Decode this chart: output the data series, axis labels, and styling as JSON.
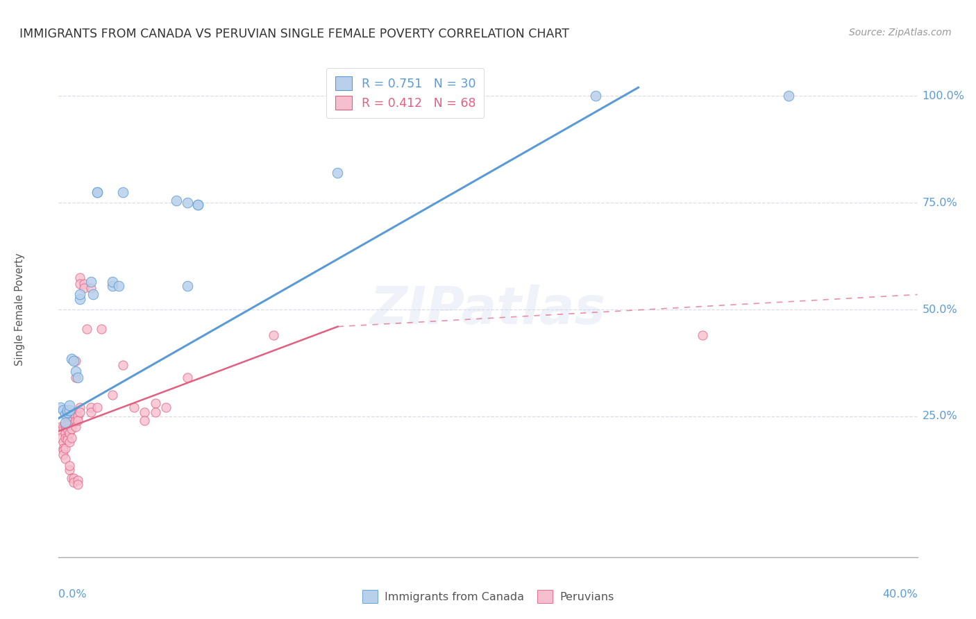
{
  "title": "IMMIGRANTS FROM CANADA VS PERUVIAN SINGLE FEMALE POVERTY CORRELATION CHART",
  "source": "Source: ZipAtlas.com",
  "ylabel": "Single Female Poverty",
  "right_yticks": [
    0.25,
    0.5,
    0.75,
    1.0
  ],
  "right_yticklabels": [
    "25.0%",
    "50.0%",
    "75.0%",
    "100.0%"
  ],
  "legend_entries": [
    {
      "label": "R = 0.751   N = 30"
    },
    {
      "label": "R = 0.412   N = 68"
    }
  ],
  "legend_bottom_labels": [
    "Immigrants from Canada",
    "Peruvians"
  ],
  "blue_scatter": [
    [
      0.001,
      0.27
    ],
    [
      0.002,
      0.265
    ],
    [
      0.003,
      0.255
    ],
    [
      0.003,
      0.235
    ],
    [
      0.004,
      0.26
    ],
    [
      0.004,
      0.265
    ],
    [
      0.005,
      0.265
    ],
    [
      0.005,
      0.275
    ],
    [
      0.006,
      0.385
    ],
    [
      0.007,
      0.38
    ],
    [
      0.008,
      0.355
    ],
    [
      0.009,
      0.34
    ],
    [
      0.01,
      0.525
    ],
    [
      0.01,
      0.535
    ],
    [
      0.015,
      0.565
    ],
    [
      0.016,
      0.535
    ],
    [
      0.018,
      0.775
    ],
    [
      0.018,
      0.775
    ],
    [
      0.025,
      0.555
    ],
    [
      0.025,
      0.565
    ],
    [
      0.028,
      0.555
    ],
    [
      0.03,
      0.775
    ],
    [
      0.055,
      0.755
    ],
    [
      0.06,
      0.555
    ],
    [
      0.065,
      0.745
    ],
    [
      0.13,
      0.82
    ],
    [
      0.25,
      1.0
    ],
    [
      0.34,
      1.0
    ],
    [
      0.06,
      0.75
    ],
    [
      0.065,
      0.745
    ]
  ],
  "pink_scatter": [
    [
      0.001,
      0.225
    ],
    [
      0.001,
      0.215
    ],
    [
      0.001,
      0.2
    ],
    [
      0.002,
      0.225
    ],
    [
      0.002,
      0.19
    ],
    [
      0.002,
      0.175
    ],
    [
      0.002,
      0.17
    ],
    [
      0.002,
      0.16
    ],
    [
      0.003,
      0.225
    ],
    [
      0.003,
      0.23
    ],
    [
      0.003,
      0.21
    ],
    [
      0.003,
      0.2
    ],
    [
      0.003,
      0.175
    ],
    [
      0.003,
      0.15
    ],
    [
      0.004,
      0.245
    ],
    [
      0.004,
      0.25
    ],
    [
      0.004,
      0.23
    ],
    [
      0.004,
      0.22
    ],
    [
      0.004,
      0.2
    ],
    [
      0.004,
      0.195
    ],
    [
      0.005,
      0.26
    ],
    [
      0.005,
      0.245
    ],
    [
      0.005,
      0.23
    ],
    [
      0.005,
      0.21
    ],
    [
      0.005,
      0.19
    ],
    [
      0.005,
      0.125
    ],
    [
      0.005,
      0.135
    ],
    [
      0.006,
      0.25
    ],
    [
      0.006,
      0.245
    ],
    [
      0.006,
      0.23
    ],
    [
      0.006,
      0.22
    ],
    [
      0.006,
      0.2
    ],
    [
      0.006,
      0.105
    ],
    [
      0.007,
      0.255
    ],
    [
      0.007,
      0.105
    ],
    [
      0.007,
      0.095
    ],
    [
      0.008,
      0.25
    ],
    [
      0.008,
      0.24
    ],
    [
      0.008,
      0.225
    ],
    [
      0.008,
      0.38
    ],
    [
      0.008,
      0.34
    ],
    [
      0.009,
      0.25
    ],
    [
      0.009,
      0.24
    ],
    [
      0.009,
      0.1
    ],
    [
      0.009,
      0.09
    ],
    [
      0.01,
      0.575
    ],
    [
      0.01,
      0.56
    ],
    [
      0.01,
      0.27
    ],
    [
      0.01,
      0.26
    ],
    [
      0.012,
      0.56
    ],
    [
      0.012,
      0.55
    ],
    [
      0.013,
      0.455
    ],
    [
      0.015,
      0.55
    ],
    [
      0.015,
      0.27
    ],
    [
      0.015,
      0.26
    ],
    [
      0.018,
      0.27
    ],
    [
      0.02,
      0.455
    ],
    [
      0.025,
      0.3
    ],
    [
      0.03,
      0.37
    ],
    [
      0.035,
      0.27
    ],
    [
      0.04,
      0.26
    ],
    [
      0.04,
      0.24
    ],
    [
      0.045,
      0.28
    ],
    [
      0.045,
      0.26
    ],
    [
      0.05,
      0.27
    ],
    [
      0.06,
      0.34
    ],
    [
      0.1,
      0.44
    ],
    [
      0.3,
      0.44
    ]
  ],
  "blue_line": [
    [
      0.0,
      0.245
    ],
    [
      0.27,
      1.02
    ]
  ],
  "pink_solid_line": [
    [
      0.0,
      0.215
    ],
    [
      0.13,
      0.46
    ]
  ],
  "pink_dashed_line": [
    [
      0.13,
      0.46
    ],
    [
      0.4,
      0.535
    ]
  ],
  "xlim": [
    0.0,
    0.4
  ],
  "ylim": [
    -0.08,
    1.08
  ],
  "bg_color": "#ffffff",
  "grid_color": "#dcdce8",
  "blue_color": "#b8d0ea",
  "blue_line_color": "#5b9bd5",
  "pink_color": "#f5bfcf",
  "pink_line_color": "#e06080",
  "title_color": "#333333",
  "source_color": "#999999",
  "axis_color": "#aaaaaa",
  "right_tick_color": "#5b9bd5"
}
